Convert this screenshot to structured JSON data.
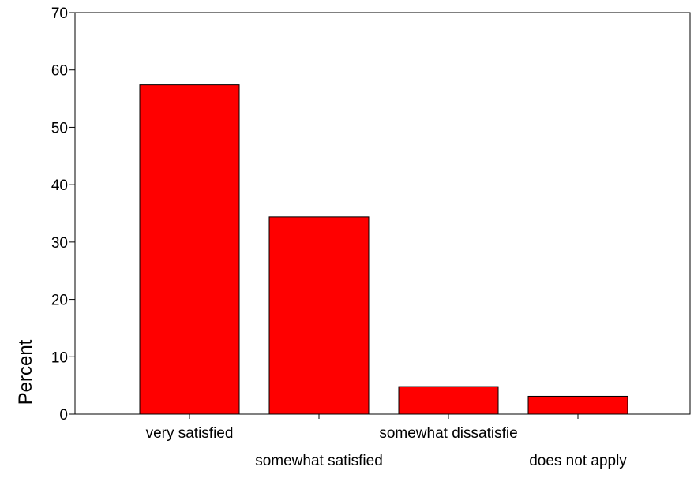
{
  "chart_data": {
    "type": "bar",
    "title": "",
    "xlabel": "",
    "ylabel": "Percent",
    "ylim": [
      0,
      70
    ],
    "yticks": [
      0,
      10,
      20,
      30,
      40,
      50,
      60,
      70
    ],
    "categories": [
      "very satisfied",
      "somewhat satisfied",
      "somewhat dissatisfie",
      "does not apply"
    ],
    "values": [
      57.4,
      34.4,
      4.8,
      3.1
    ],
    "grid": false,
    "legend": "none",
    "bar_color": "#ff0000",
    "bar_edge_color": "#000000"
  }
}
